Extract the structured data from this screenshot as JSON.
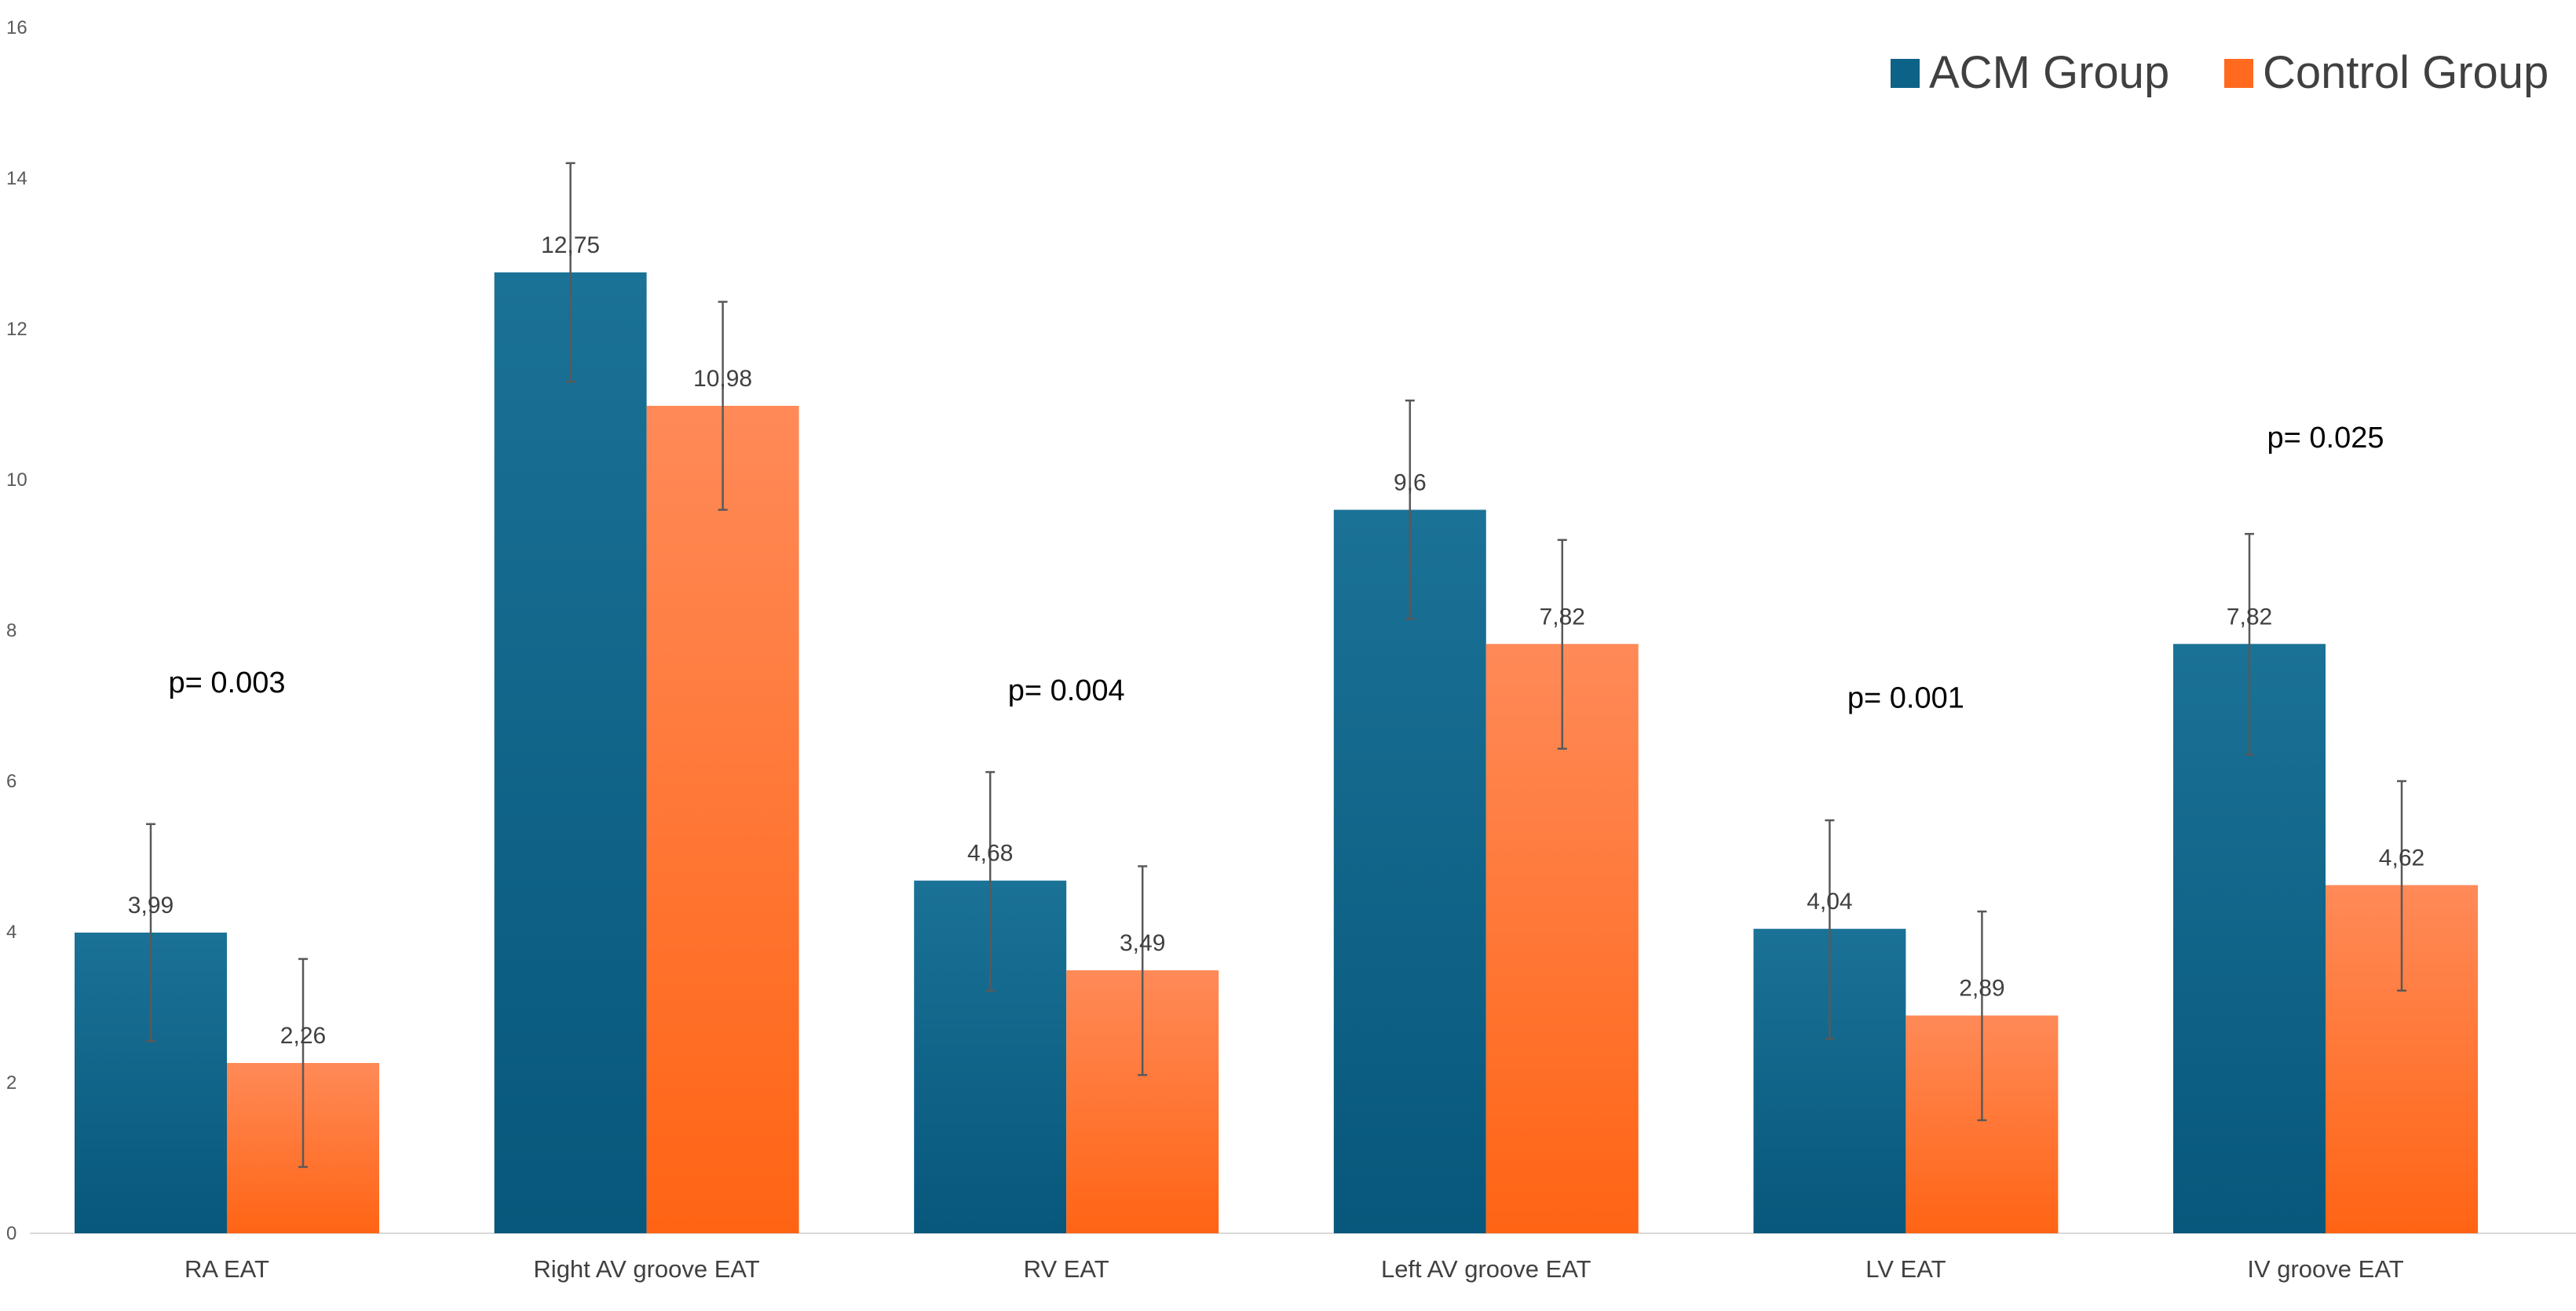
{
  "chart_data": {
    "type": "bar",
    "title": "",
    "xlabel": "",
    "ylabel": "",
    "ylim": [
      0,
      16
    ],
    "yticks": [
      0,
      2,
      4,
      6,
      8,
      10,
      12,
      14,
      16
    ],
    "grid": false,
    "legend_position": "top-right",
    "categories": [
      "RA EAT",
      "Right AV groove EAT",
      "RV EAT",
      "Left AV groove EAT",
      "LV EAT",
      "IV groove EAT"
    ],
    "series": [
      {
        "name": "ACM Group",
        "color": "#0d6288",
        "values": [
          3.99,
          12.75,
          4.68,
          9.6,
          4.04,
          7.82
        ],
        "labels": [
          "3,99",
          "12,75",
          "4,68",
          "9,6",
          "4,04",
          "7,82"
        ],
        "error_low": [
          2.55,
          11.3,
          3.22,
          8.15,
          2.58,
          6.35
        ],
        "error_high": [
          5.43,
          14.2,
          6.12,
          11.05,
          5.48,
          9.28
        ]
      },
      {
        "name": "Control Group",
        "color": "#ff6a1f",
        "values": [
          2.26,
          10.98,
          3.49,
          7.82,
          2.89,
          4.62
        ],
        "labels": [
          "2,26",
          "10,98",
          "3,49",
          "7,82",
          "2,89",
          "4,62"
        ],
        "error_low": [
          0.88,
          9.6,
          2.1,
          6.43,
          1.5,
          3.22
        ],
        "error_high": [
          3.64,
          12.36,
          4.87,
          9.2,
          4.27,
          6.0
        ]
      }
    ],
    "annotations": [
      {
        "text": "p= 0.003",
        "category_index": 0,
        "y": 7.3
      },
      {
        "text": "p= 0.004",
        "category_index": 2,
        "y": 7.2
      },
      {
        "text": "p= 0.001",
        "category_index": 4,
        "y": 7.1
      },
      {
        "text": "p= 0.025",
        "category_index": 5,
        "y": 10.55
      }
    ]
  }
}
